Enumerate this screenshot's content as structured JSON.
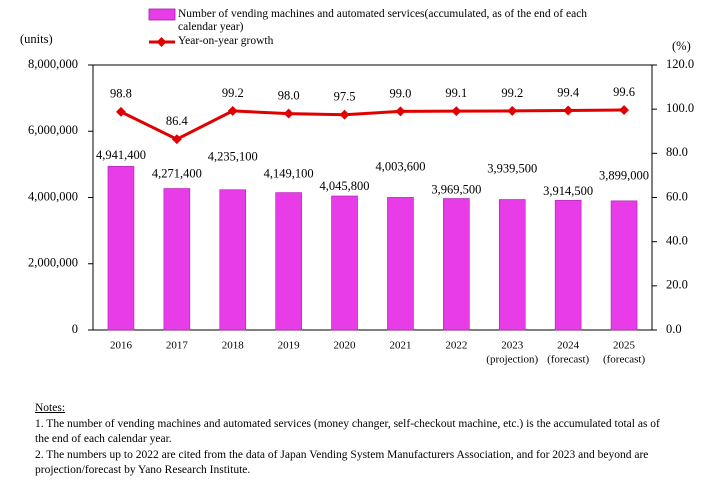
{
  "chart_data": {
    "type": "bar-line",
    "categories": [
      "2016",
      "2017",
      "2018",
      "2019",
      "2020",
      "2021",
      "2022",
      "2023",
      "2024",
      "2025"
    ],
    "category_sublabels": [
      null,
      null,
      null,
      null,
      null,
      null,
      null,
      "(projection)",
      "(forecast)",
      "(forecast)"
    ],
    "y_axis_label": "(units)",
    "y2_axis_label": "(%)",
    "ylim": [
      0,
      8000000
    ],
    "yticks": [
      0,
      {
        "value": 2000000,
        "label": "2,000,000"
      },
      {
        "value": 4000000,
        "label": "4,000,000"
      },
      {
        "value": 6000000,
        "label": "6,000,000"
      },
      {
        "value": 8000000,
        "label": "8,000,000"
      }
    ],
    "y2lim": [
      0,
      120
    ],
    "y2ticks": [
      {
        "value": 0,
        "label": "0.0"
      },
      {
        "value": 20,
        "label": "20.0"
      },
      {
        "value": 40,
        "label": "40.0"
      },
      {
        "value": 60,
        "label": "60.0"
      },
      {
        "value": 80,
        "label": "80.0"
      },
      {
        "value": 100,
        "label": "100.0"
      },
      {
        "value": 120,
        "label": "120.0"
      }
    ],
    "series": [
      {
        "name": "Number of vending machines and automated services(accumulated, as of the end of each calendar year)",
        "type": "bar",
        "color": "#e83ce8",
        "values": [
          4941400,
          4271400,
          4235100,
          4149100,
          4045800,
          4003600,
          3969500,
          3939500,
          3914500,
          3899000
        ],
        "value_labels": [
          "4,941,400",
          "4,271,400",
          "4,235,100",
          "4,149,100",
          "4,045,800",
          "4,003,600",
          "3,969,500",
          "3,939,500",
          "3,914,500",
          "3,899,000"
        ]
      },
      {
        "name": "Year-on-year growth",
        "type": "line",
        "axis": "y2",
        "color": "#e00000",
        "values": [
          98.8,
          86.4,
          99.2,
          98.0,
          97.5,
          99.0,
          99.1,
          99.2,
          99.4,
          99.6
        ],
        "value_labels": [
          "98.8",
          "86.4",
          "99.2",
          "98.0",
          "97.5",
          "99.0",
          "99.1",
          "99.2",
          "99.4",
          "99.6"
        ]
      }
    ]
  },
  "notes": {
    "title": "Notes:",
    "items": [
      "1. The number of vending machines and automated  services (money changer, self-checkout machine, etc.) is the accumulated  total as of the end of each calendar year.",
      "2. The numbers up to 2022 are cited from the data of Japan Vending System Manufacturers Association, and for 2023 and beyond are projection/forecast  by Yano Research Institute."
    ]
  }
}
